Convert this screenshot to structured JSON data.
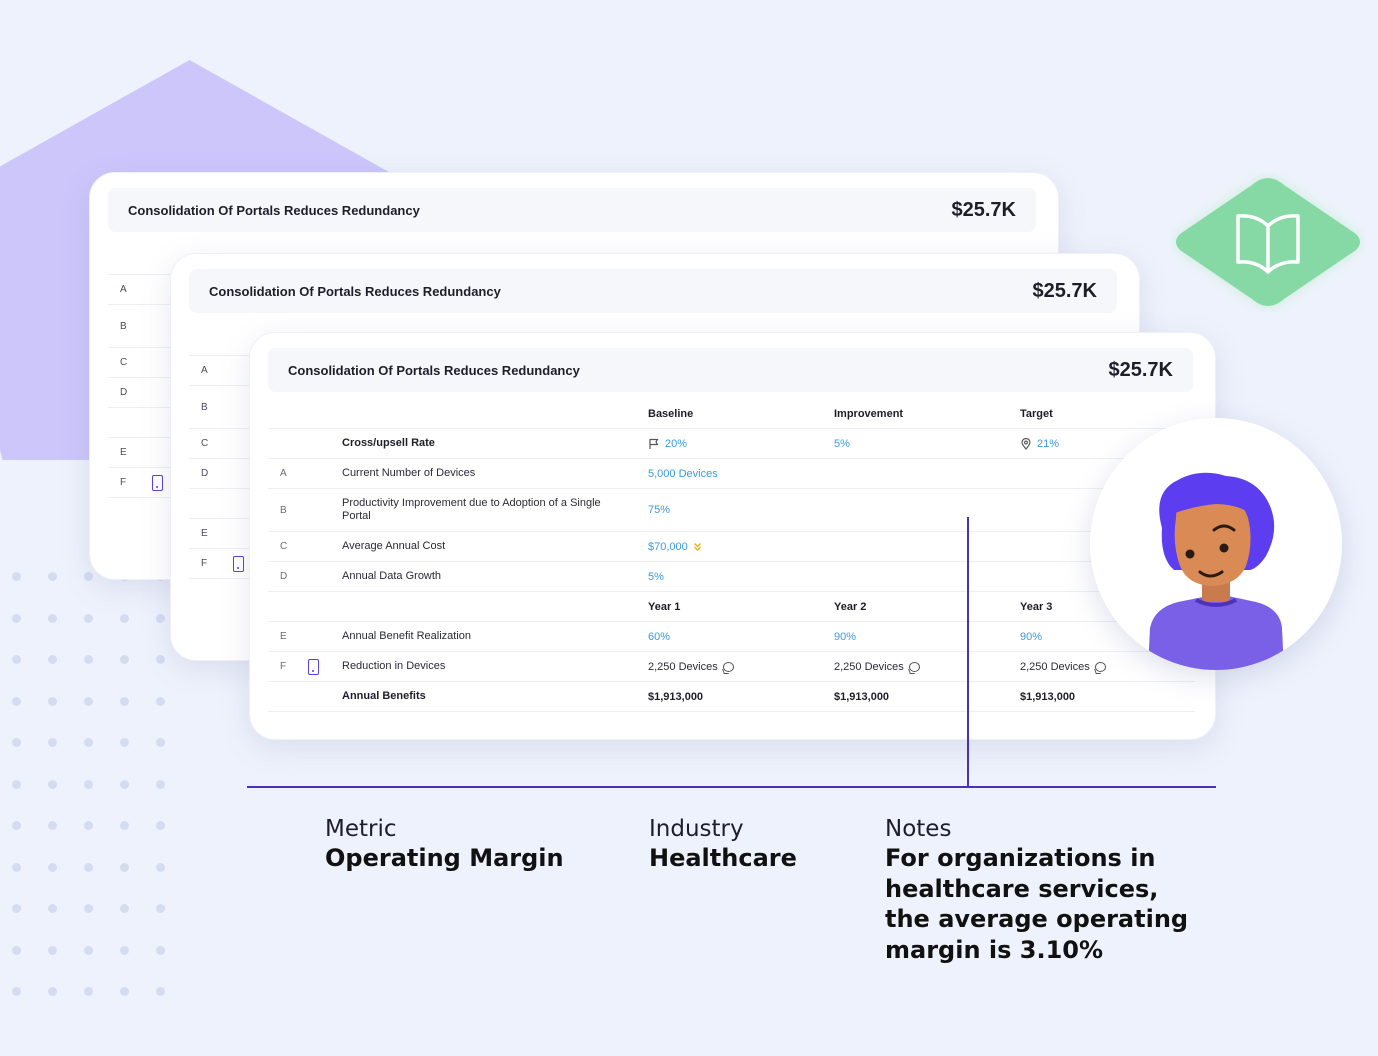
{
  "card": {
    "title": "Consolidation Of Portals Reduces Redundancy",
    "amount": "$25.7K"
  },
  "back_rows": [
    "A",
    "B",
    "C",
    "D",
    "E",
    "F"
  ],
  "table": {
    "headers": {
      "baseline": "Baseline",
      "improvement": "Improvement",
      "target": "Target"
    },
    "year_headers": {
      "y1": "Year 1",
      "y2": "Year 2",
      "y3": "Year 3"
    },
    "cross_upsell": {
      "label": "Cross/upsell Rate",
      "baseline": "20%",
      "improvement": "5%",
      "target": "21%"
    },
    "rows": [
      {
        "letter": "A",
        "label": "Current Number of Devices",
        "baseline": "5,000 Devices"
      },
      {
        "letter": "B",
        "label": "Productivity Improvement due to Adoption of a Single Portal",
        "baseline": "75%"
      },
      {
        "letter": "C",
        "label": "Average Annual Cost",
        "baseline": "$70,000"
      },
      {
        "letter": "D",
        "label": "Annual Data Growth",
        "baseline": "5%"
      }
    ],
    "benefit_realization": {
      "letter": "E",
      "label": "Annual Benefit Realization",
      "y1": "60%",
      "y2": "90%",
      "y3": "90%"
    },
    "device_reduction": {
      "letter": "F",
      "label": "Reduction in Devices",
      "y1": "2,250 Devices",
      "y2": "2,250 Devices",
      "y3": "2,250 Devices"
    },
    "annual_benefits": {
      "label": "Annual Benefits",
      "y1": "$1,913,000",
      "y2": "$1,913,000",
      "y3": "$1,913,000"
    }
  },
  "info": {
    "metric_label": "Metric",
    "metric_value": "Operating Margin",
    "industry_label": "Industry",
    "industry_value": "Healthcare",
    "notes_label": "Notes",
    "notes_value": "For organizations in healthcare services, the average operating margin is 3.10%"
  },
  "colors": {
    "accent": "#4a2fb8",
    "link": "#3b9ae1",
    "badge": "#86d9a5",
    "lilac": "#cdc6fb",
    "background": "#eef2fc"
  },
  "icons": [
    "flag-icon",
    "location-pin-icon",
    "chevron-double-down-icon",
    "comment-icon",
    "phone-icon",
    "book-icon"
  ]
}
